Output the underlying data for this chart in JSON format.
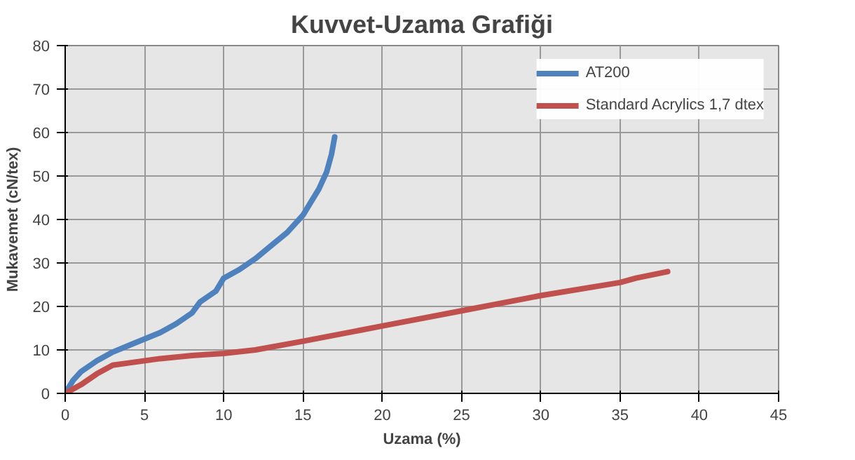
{
  "chart_data": {
    "type": "line",
    "title": "Kuvvet-Uzama Grafiği",
    "xlabel": "Uzama (%)",
    "ylabel": "Mukavemet (cN/tex)",
    "xlim": [
      0,
      45
    ],
    "xticks": [
      0,
      5,
      10,
      15,
      20,
      25,
      30,
      35,
      40,
      45
    ],
    "ylim": [
      0,
      80
    ],
    "yticks": [
      0,
      10,
      20,
      30,
      40,
      50,
      60,
      70,
      80
    ],
    "grid": true,
    "legend": "top right",
    "line_style": "solid",
    "series": [
      {
        "name": "AT200",
        "color": "#4f81bd",
        "x": [
          0,
          0.5,
          1,
          2,
          3,
          4,
          5,
          6,
          7,
          8,
          8.5,
          9.5,
          10,
          11,
          12,
          13,
          14,
          15,
          15.5,
          16,
          16.5,
          16.8,
          17
        ],
        "values": [
          0,
          3,
          5,
          7.5,
          9.5,
          11,
          12.5,
          14,
          16,
          18.5,
          21,
          23.5,
          26.5,
          28.5,
          31,
          34,
          37,
          41,
          44,
          47,
          51,
          55,
          59
        ]
      },
      {
        "name": "Standard Acrylics 1,7 dtex",
        "color": "#c0504d",
        "x": [
          0,
          1,
          2,
          3,
          4,
          6,
          8,
          10,
          12,
          15,
          20,
          25,
          30,
          35,
          36,
          38
        ],
        "values": [
          0,
          2,
          4.5,
          6.5,
          7,
          8,
          8.7,
          9.2,
          10,
          12,
          15.5,
          19,
          22.5,
          25.5,
          26.5,
          28
        ]
      }
    ]
  }
}
